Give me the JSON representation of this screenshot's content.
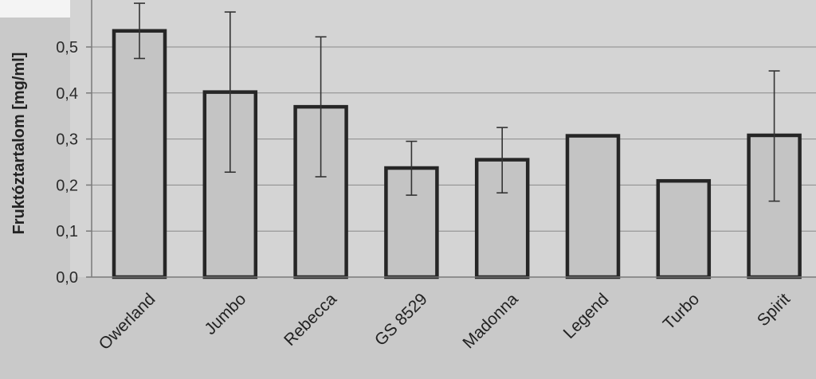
{
  "chart_data": {
    "type": "bar",
    "categories": [
      "Owerland",
      "Jumbo",
      "Rebecca",
      "GS 8529",
      "Madonna",
      "Legend",
      "Turbo",
      "Spirit"
    ],
    "values": [
      0.535,
      0.402,
      0.37,
      0.237,
      0.255,
      0.307,
      0.209,
      0.308
    ],
    "error_low": [
      0.475,
      0.228,
      0.218,
      0.178,
      0.183,
      null,
      null,
      0.165
    ],
    "error_high": [
      0.595,
      0.576,
      0.522,
      0.295,
      0.325,
      null,
      null,
      0.448
    ],
    "title": "",
    "xlabel": "",
    "ylabel": "Fruktóztartalom [mg/ml]",
    "ylim": [
      0,
      0.6
    ],
    "yticks": [
      "0,0",
      "0,1",
      "0,2",
      "0,3",
      "0,4",
      "0,5"
    ],
    "grid": true,
    "legend": "none",
    "colors": {
      "bar_fill": "#c4c4c4",
      "bar_stroke": "#262626",
      "plot_bg": "#d4d4d4",
      "grid": "#8a8a8a",
      "background_top": "#c9c9c9"
    }
  }
}
